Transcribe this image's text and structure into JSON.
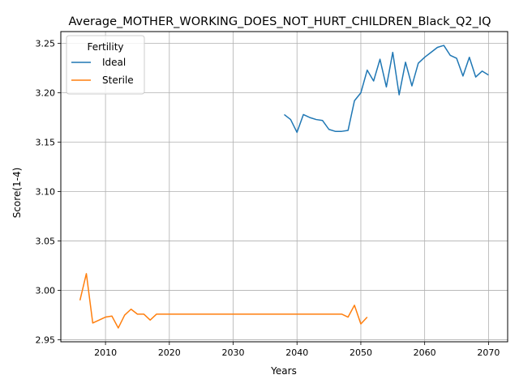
{
  "chart_data": {
    "type": "line",
    "title": "Average_MOTHER_WORKING_DOES_NOT_HURT_CHILDREN_Black_Q2_IQ",
    "xlabel": "Years",
    "ylabel": "Score(1-4)",
    "xlim": [
      2003,
      2073
    ],
    "ylim": [
      2.948,
      3.262
    ],
    "xticks": [
      2010,
      2020,
      2030,
      2040,
      2050,
      2060,
      2070
    ],
    "yticks": [
      2.95,
      3.0,
      3.05,
      3.1,
      3.15,
      3.2,
      3.25
    ],
    "ytick_labels": [
      "2.95",
      "3.00",
      "3.05",
      "3.10",
      "3.15",
      "3.20",
      "3.25"
    ],
    "grid": true,
    "legend": {
      "title": "Fertility",
      "placement": "upper-left"
    },
    "series": [
      {
        "name": "Ideal",
        "color": "#1f77b4",
        "x": [
          2038,
          2039,
          2040,
          2041,
          2042,
          2043,
          2044,
          2045,
          2046,
          2047,
          2048,
          2049,
          2050,
          2051,
          2052,
          2053,
          2054,
          2055,
          2056,
          2057,
          2058,
          2059,
          2060,
          2061,
          2062,
          2063,
          2064,
          2065,
          2066,
          2067,
          2068,
          2069,
          2070
        ],
        "y": [
          3.178,
          3.173,
          3.16,
          3.178,
          3.175,
          3.173,
          3.172,
          3.163,
          3.161,
          3.161,
          3.162,
          3.192,
          3.2,
          3.223,
          3.212,
          3.234,
          3.206,
          3.241,
          3.198,
          3.231,
          3.207,
          3.23,
          3.236,
          3.241,
          3.246,
          3.248,
          3.238,
          3.235,
          3.217,
          3.236,
          3.216,
          3.222,
          3.218
        ]
      },
      {
        "name": "Sterile",
        "color": "#ff7f0e",
        "x": [
          2006,
          2007,
          2008,
          2009,
          2010,
          2011,
          2012,
          2013,
          2014,
          2015,
          2016,
          2017,
          2018,
          2019,
          2020,
          2021,
          2022,
          2023,
          2024,
          2025,
          2026,
          2027,
          2028,
          2029,
          2030,
          2031,
          2032,
          2033,
          2034,
          2035,
          2036,
          2037,
          2038,
          2039,
          2040,
          2041,
          2042,
          2043,
          2044,
          2045,
          2046,
          2047,
          2048,
          2049,
          2050,
          2051
        ],
        "y": [
          2.99,
          3.017,
          2.967,
          2.97,
          2.973,
          2.974,
          2.962,
          2.975,
          2.981,
          2.976,
          2.976,
          2.97,
          2.976,
          2.976,
          2.976,
          2.976,
          2.976,
          2.976,
          2.976,
          2.976,
          2.976,
          2.976,
          2.976,
          2.976,
          2.976,
          2.976,
          2.976,
          2.976,
          2.976,
          2.976,
          2.976,
          2.976,
          2.976,
          2.976,
          2.976,
          2.976,
          2.976,
          2.976,
          2.976,
          2.976,
          2.976,
          2.976,
          2.973,
          2.985,
          2.966,
          2.973
        ]
      }
    ]
  }
}
